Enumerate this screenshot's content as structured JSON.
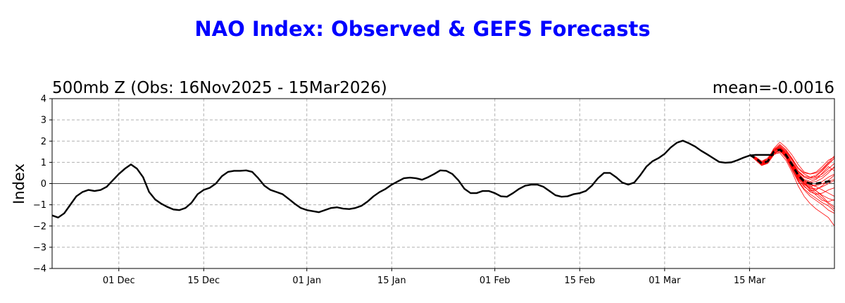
{
  "title": "NAO Index: Observed & GEFS Forecasts",
  "chart_data": {
    "type": "line",
    "subtitle_left": "500mb Z (Obs: 16Nov2025 - 15Mar2026)",
    "subtitle_right": "mean=-0.0016",
    "ylabel": "Index",
    "xlabel": "",
    "xlim": [
      "2025-11-20",
      "2026-03-29"
    ],
    "ylim": [
      -4,
      4
    ],
    "yticks": [
      4,
      3,
      2,
      1,
      0,
      -1,
      -2,
      -3,
      -4
    ],
    "ytick_labels": [
      "4",
      "3",
      "2",
      "1",
      "0",
      "−1",
      "−2",
      "−3",
      "−4"
    ],
    "xticks": [
      "2025-12-01",
      "2025-12-15",
      "2026-01-01",
      "2026-01-15",
      "2026-02-01",
      "2026-02-15",
      "2026-03-01",
      "2026-03-15"
    ],
    "xtick_labels": [
      "01 Dec",
      "15 Dec",
      "01 Jan",
      "15 Jan",
      "01 Feb",
      "15 Feb",
      "01 Mar",
      "15 Mar"
    ],
    "grid": true,
    "zero_line": true,
    "colors": {
      "observed": "#000000",
      "ensemble": "#ff0000",
      "ensemble_mean": "#000000"
    },
    "series": [
      {
        "style": "solid",
        "color": "#000000",
        "start": "2025-11-20",
        "values": [
          -1.5,
          -1.6,
          -1.4,
          -1.0,
          -0.6,
          -0.4,
          -0.3,
          -0.35,
          -0.3,
          -0.15,
          0.15,
          0.45,
          0.7,
          0.9,
          0.7,
          0.3,
          -0.4,
          -0.75,
          -0.95,
          -1.1,
          -1.22,
          -1.25,
          -1.15,
          -0.9,
          -0.5,
          -0.3,
          -0.2,
          0.0,
          0.35,
          0.55,
          0.6,
          0.6,
          0.62,
          0.55,
          0.25,
          -0.1,
          -0.3,
          -0.4,
          -0.5,
          -0.72,
          -0.95,
          -1.15,
          -1.25,
          -1.3,
          -1.35,
          -1.25,
          -1.15,
          -1.12,
          -1.18,
          -1.2,
          -1.15,
          -1.05,
          -0.85,
          -0.6,
          -0.4,
          -0.25,
          -0.05,
          0.1,
          0.25,
          0.28,
          0.25,
          0.18,
          0.3,
          0.45,
          0.62,
          0.6,
          0.45,
          0.15,
          -0.25,
          -0.45,
          -0.45,
          -0.35,
          -0.35,
          -0.45,
          -0.6,
          -0.62,
          -0.45,
          -0.25,
          -0.1,
          -0.05,
          -0.05,
          -0.15,
          -0.35,
          -0.55,
          -0.62,
          -0.6,
          -0.5,
          -0.45,
          -0.35,
          -0.1,
          0.25,
          0.5,
          0.5,
          0.3,
          0.05,
          -0.05,
          0.05,
          0.4,
          0.8,
          1.05,
          1.2,
          1.4,
          1.7,
          1.92,
          2.02,
          1.9,
          1.75,
          1.55,
          1.38,
          1.2,
          1.02,
          0.98,
          1.0,
          1.1,
          1.22,
          1.32,
          1.35,
          1.35,
          1.35,
          1.35
        ]
      },
      {
        "style": "dashed",
        "color": "#000000",
        "start": "2026-03-15",
        "values": [
          1.35,
          1.2,
          0.95,
          1.05,
          1.5,
          1.6,
          1.35,
          0.9,
          0.4,
          0.1,
          0.0,
          0.0,
          0.05,
          0.1,
          0.1,
          0.1
        ]
      }
    ],
    "ensemble": {
      "start": "2026-03-15",
      "color": "#ff0000",
      "members": [
        [
          1.35,
          1.15,
          0.9,
          1.0,
          1.55,
          1.75,
          1.5,
          1.1,
          0.6,
          0.3,
          0.25,
          0.35,
          0.6,
          0.9,
          1.2,
          1.4
        ],
        [
          1.35,
          1.25,
          1.0,
          1.15,
          1.65,
          1.95,
          1.7,
          1.35,
          0.9,
          0.55,
          0.45,
          0.5,
          0.7,
          1.0,
          1.3,
          1.5
        ],
        [
          1.35,
          1.2,
          0.95,
          1.05,
          1.45,
          1.55,
          1.2,
          0.65,
          0.1,
          -0.3,
          -0.6,
          -0.8,
          -1.0,
          -1.25,
          -1.4,
          -1.45
        ],
        [
          1.35,
          1.15,
          0.85,
          1.0,
          1.4,
          1.45,
          1.1,
          0.55,
          -0.1,
          -0.6,
          -0.95,
          -1.2,
          -1.4,
          -1.6,
          -2.0,
          -2.3
        ],
        [
          1.35,
          1.25,
          1.05,
          1.2,
          1.6,
          1.75,
          1.45,
          1.0,
          0.5,
          0.15,
          -0.05,
          -0.1,
          0.0,
          0.1,
          0.2,
          0.3
        ],
        [
          1.35,
          1.2,
          0.9,
          0.95,
          1.35,
          1.5,
          1.3,
          0.8,
          0.3,
          -0.05,
          -0.2,
          -0.25,
          -0.15,
          0.0,
          0.15,
          0.2
        ],
        [
          1.35,
          1.1,
          0.85,
          0.95,
          1.5,
          1.7,
          1.4,
          0.95,
          0.45,
          0.1,
          -0.1,
          -0.35,
          -0.6,
          -0.9,
          -1.1,
          -1.2
        ],
        [
          1.35,
          1.25,
          1.0,
          1.1,
          1.55,
          1.8,
          1.55,
          1.15,
          0.7,
          0.45,
          0.3,
          0.3,
          0.45,
          0.7,
          0.95,
          1.1
        ],
        [
          1.35,
          1.2,
          0.95,
          1.05,
          1.45,
          1.6,
          1.35,
          0.85,
          0.3,
          0.0,
          -0.3,
          -0.55,
          -0.8,
          -0.85,
          -0.75,
          -0.6
        ],
        [
          1.35,
          1.15,
          0.9,
          1.0,
          1.4,
          1.6,
          1.3,
          0.8,
          0.2,
          -0.1,
          -0.4,
          -0.5,
          -0.45,
          -0.3,
          -0.2,
          -0.1
        ],
        [
          1.35,
          1.2,
          0.95,
          1.1,
          1.55,
          1.7,
          1.45,
          0.95,
          0.55,
          0.3,
          0.2,
          0.25,
          0.35,
          0.6,
          0.75,
          0.9
        ],
        [
          1.35,
          1.25,
          1.0,
          1.05,
          1.5,
          1.65,
          1.4,
          0.9,
          0.35,
          0.05,
          -0.15,
          -0.05,
          0.1,
          0.3,
          0.45,
          0.6
        ],
        [
          1.35,
          1.15,
          0.9,
          1.05,
          1.45,
          1.55,
          1.25,
          0.7,
          0.15,
          -0.25,
          -0.5,
          -0.7,
          -0.9,
          -1.05,
          -1.3,
          -1.5
        ],
        [
          1.35,
          1.2,
          0.95,
          1.1,
          1.6,
          1.85,
          1.6,
          1.2,
          0.75,
          0.5,
          0.45,
          0.55,
          0.8,
          1.1,
          1.25,
          1.45
        ],
        [
          1.35,
          1.2,
          0.95,
          1.0,
          1.45,
          1.6,
          1.35,
          0.85,
          0.4,
          0.1,
          -0.05,
          -0.15,
          -0.3,
          -0.45,
          -0.6,
          -0.7
        ],
        [
          1.35,
          1.15,
          0.9,
          1.05,
          1.5,
          1.7,
          1.4,
          0.95,
          0.5,
          0.2,
          0.1,
          0.2,
          0.5,
          0.8,
          0.6,
          0.5
        ],
        [
          1.35,
          1.2,
          1.0,
          1.1,
          1.5,
          1.65,
          1.35,
          0.9,
          0.4,
          0.05,
          -0.25,
          -0.45,
          -0.7,
          -0.95,
          -1.2,
          -1.35
        ],
        [
          1.35,
          1.25,
          1.05,
          1.15,
          1.55,
          1.7,
          1.45,
          1.0,
          0.6,
          0.35,
          0.3,
          0.4,
          0.65,
          0.95,
          1.2,
          1.35
        ],
        [
          1.35,
          1.15,
          0.9,
          1.0,
          1.4,
          1.55,
          1.25,
          0.75,
          0.25,
          -0.15,
          -0.35,
          -0.3,
          -0.1,
          0.15,
          0.4,
          0.55
        ],
        [
          1.35,
          1.2,
          0.95,
          1.05,
          1.5,
          1.65,
          1.4,
          0.9,
          0.35,
          0.0,
          -0.2,
          -0.35,
          -0.55,
          -0.7,
          -0.8,
          -0.95
        ],
        [
          1.35,
          1.2,
          0.9,
          1.0,
          1.45,
          1.6,
          1.3,
          0.85,
          0.4,
          0.15,
          0.05,
          0.1,
          0.25,
          0.5,
          0.8,
          1.0
        ]
      ]
    }
  }
}
